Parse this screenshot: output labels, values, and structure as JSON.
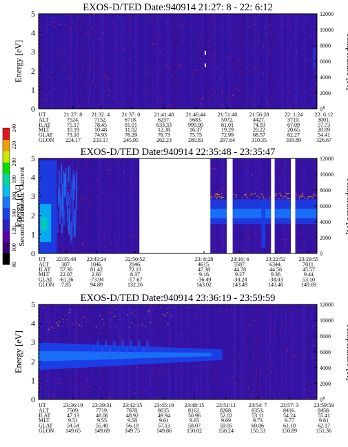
{
  "chart_data": [
    {
      "type": "heatmap",
      "title": "EXOS-D/TED   Date:940914  21:27: 8 - 22: 6:12",
      "ylabel": "Energy [eV]",
      "y2label": "Temperature [K]",
      "yticks": [
        "0",
        "1",
        "2",
        "3",
        "4",
        "5"
      ],
      "y2ticks": [
        "0",
        "2000",
        "4000",
        "6000",
        "8000",
        "10000",
        "12000"
      ],
      "ylim": [
        0,
        5
      ],
      "y2lim": [
        0,
        12000
      ],
      "ephemeris_labels": [
        "UT",
        "ALT",
        "ILAT",
        "MLT",
        "GLAT",
        "GLON"
      ],
      "columns": [
        [
          "21:27: 8",
          "7524.",
          "75.17",
          "10.19",
          "73.10",
          "224.17"
        ],
        [
          "21:32: 4",
          "7152.",
          "78.45",
          "10.48",
          "74.93",
          "233.17"
        ],
        [
          "21:37: 0",
          "6718.",
          "81.91",
          "11.02",
          "76.29",
          "245.95"
        ],
        [
          "21:41:48",
          "6237.",
          "633.33",
          "12.38",
          "76.73",
          "262.23"
        ],
        [
          "21:46:44",
          "5683.",
          "999.00",
          "16.37",
          "75.75",
          "280.83"
        ],
        [
          "21:51:40",
          "5072.",
          "81.01",
          "19.29",
          "72.99",
          "297.64"
        ],
        [
          "21:56:28",
          "4427.",
          "74.93",
          "20.22",
          "68.57",
          "310.35"
        ],
        [
          "22: 1:24",
          "3719.",
          "67.09",
          "20.65",
          "62.27",
          "319.89"
        ],
        [
          "22: 6:12",
          "3001.",
          "57.73",
          "20.89",
          "54.41",
          "326.67"
        ]
      ],
      "data_gaps": []
    },
    {
      "type": "heatmap",
      "title": "EXOS-D/TED   Date:940914  22:35:48 - 23:35:47",
      "ylabel": "Energy [eV]",
      "y2label": "Temperature [K]",
      "colorbar_label": "Second Harmonic Current",
      "colorbar_ticks": [
        "80",
        "100",
        "120",
        "140",
        "160",
        "180",
        "200",
        "220",
        "240"
      ],
      "colorbar_colors": [
        "#000000",
        "#3a0070",
        "#5a00a8",
        "#2a20c0",
        "#1a40e8",
        "#1878f8",
        "#00c0f0",
        "#00d8a0",
        "#00e000",
        "#c8e800",
        "#f0a000",
        "#e01818"
      ],
      "yticks": [
        "0",
        "1",
        "2",
        "3",
        "4",
        "5"
      ],
      "y2ticks": [
        "0",
        "2000",
        "4000",
        "6000",
        "8000",
        "10000",
        "12000"
      ],
      "ylim": [
        0,
        5
      ],
      "y2lim": [
        0,
        12000
      ],
      "ephemeris_labels": [
        "UT",
        "ALT",
        "ILAT",
        "MLT",
        "GLAT",
        "GLON"
      ],
      "columns": [
        [
          "22:35:48",
          "387.",
          "57.30",
          "22.07",
          "-61.36",
          "7.85"
        ],
        [
          "22:43:24",
          "1046.",
          "81.42",
          "2.60",
          "-73.94",
          "94.89"
        ],
        [
          "22:50:52",
          "2046.",
          "72.13",
          "8.37",
          "-57.67",
          "132.26"
        ],
        [
          "23: 8:28",
          "4615.",
          "47.38",
          "9.16",
          "-36.49",
          "143.02"
        ],
        [
          "23:16: 4",
          "5587.",
          "44.78",
          "9.27",
          "-34.24",
          "143.49"
        ],
        [
          "23:22:52",
          "6344.",
          "44.56",
          "9.36",
          "-34.03",
          "143.40"
        ],
        [
          "23:29:55",
          "7011.",
          "45.57",
          "9.44",
          "53.10",
          "149.69"
        ]
      ],
      "data_gaps": [
        [
          0.362,
          0.617
        ],
        [
          0.676,
          0.697
        ],
        [
          0.835,
          0.848
        ],
        [
          0.906,
          0.922
        ]
      ]
    },
    {
      "type": "heatmap",
      "title": "EXOS-D/TED   Date:940914  23:36:19 - 23:59:59",
      "ylabel": "Energy [eV]",
      "y2label": "Temperature [K]",
      "yticks": [
        "0",
        "1",
        "2",
        "3",
        "4",
        "5"
      ],
      "y2ticks": [
        "0",
        "2000",
        "4000",
        "6000",
        "8000",
        "10000",
        "12000"
      ],
      "ylim": [
        0,
        5
      ],
      "y2lim": [
        0,
        12000
      ],
      "ephemeris_labels": [
        "UT",
        "ALT",
        "ILAT",
        "MLT",
        "GLAT",
        "GLON"
      ],
      "columns": [
        [
          "23:36:19",
          "7509.",
          "47.13",
          "9.51",
          "54.54",
          "149.65"
        ],
        [
          "23:39:31",
          "7719.",
          "48.06",
          "9.55",
          "55.40",
          "149.69"
        ],
        [
          "23:42:15",
          "7878.",
          "48.92",
          "9.58",
          "56.19",
          "149.75"
        ],
        [
          "23:45:19",
          "8035.",
          "49.94",
          "9.61",
          "57.13",
          "149.86"
        ],
        [
          "23:48:15",
          "8162.",
          "50.96",
          "9.65",
          "58.07",
          "150.02"
        ],
        [
          "23:51:11",
          "8268.",
          "52.02",
          "9.69",
          "59.05",
          "150.24"
        ],
        [
          "23:54: 7",
          "8353.",
          "53.11",
          "9.73",
          "60.06",
          "150.53"
        ],
        [
          "23:57: 3",
          "8416.",
          "54.24",
          "9.77",
          "61.10",
          "150.89"
        ],
        [
          "23:59:59",
          "8458.",
          "55.41",
          "9.81",
          "62.17",
          "151.36"
        ]
      ],
      "data_gaps": []
    }
  ]
}
